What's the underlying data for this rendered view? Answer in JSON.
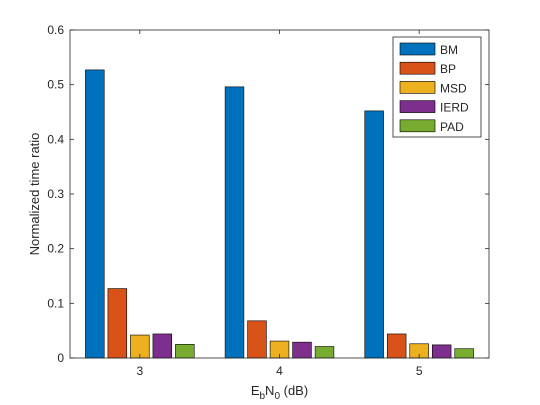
{
  "chart_data": {
    "type": "bar",
    "categories": [
      "3",
      "4",
      "5"
    ],
    "series": [
      {
        "name": "BM",
        "color": "#0072BD",
        "values": [
          0.527,
          0.496,
          0.452
        ]
      },
      {
        "name": "BP",
        "color": "#D95319",
        "values": [
          0.127,
          0.068,
          0.044
        ]
      },
      {
        "name": "MSD",
        "color": "#EDB120",
        "values": [
          0.042,
          0.031,
          0.026
        ]
      },
      {
        "name": "IERD",
        "color": "#7E2F8E",
        "values": [
          0.044,
          0.029,
          0.024
        ]
      },
      {
        "name": "PAD",
        "color": "#77AC30",
        "values": [
          0.025,
          0.021,
          0.017
        ]
      }
    ],
    "ylim": [
      0,
      0.6
    ],
    "yticks": [
      0,
      0.1,
      0.2,
      0.3,
      0.4,
      0.5,
      0.6
    ],
    "ytick_labels": [
      "0",
      "0.1",
      "0.2",
      "0.3",
      "0.4",
      "0.5",
      "0.6"
    ],
    "ylabel": "Normalized time ratio",
    "xlabel": {
      "E": "E",
      "b": "b",
      "N": "N",
      "zero": "0",
      "unit": " (dB)"
    },
    "title": "",
    "grid": false,
    "legend_position": "top-right"
  }
}
